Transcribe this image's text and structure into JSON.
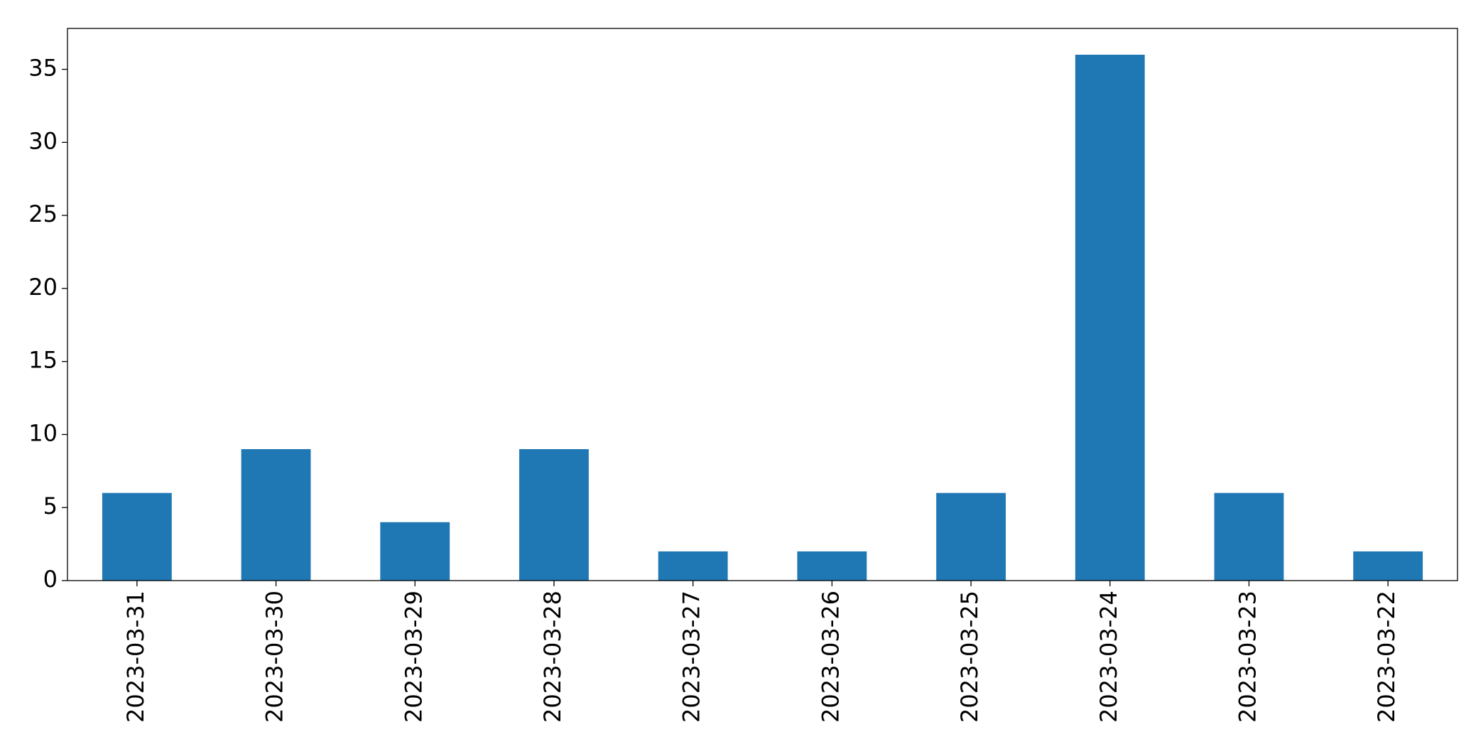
{
  "chart_data": {
    "type": "bar",
    "categories": [
      "2023-03-31",
      "2023-03-30",
      "2023-03-29",
      "2023-03-28",
      "2023-03-27",
      "2023-03-26",
      "2023-03-25",
      "2023-03-24",
      "2023-03-23",
      "2023-03-22"
    ],
    "values": [
      6,
      9,
      4,
      9,
      2,
      2,
      6,
      36,
      6,
      2
    ],
    "color": "#1f77b4",
    "ylim": [
      0,
      37.8
    ],
    "yticks": [
      0,
      5,
      10,
      15,
      20,
      25,
      30,
      35
    ],
    "grid": false
  }
}
